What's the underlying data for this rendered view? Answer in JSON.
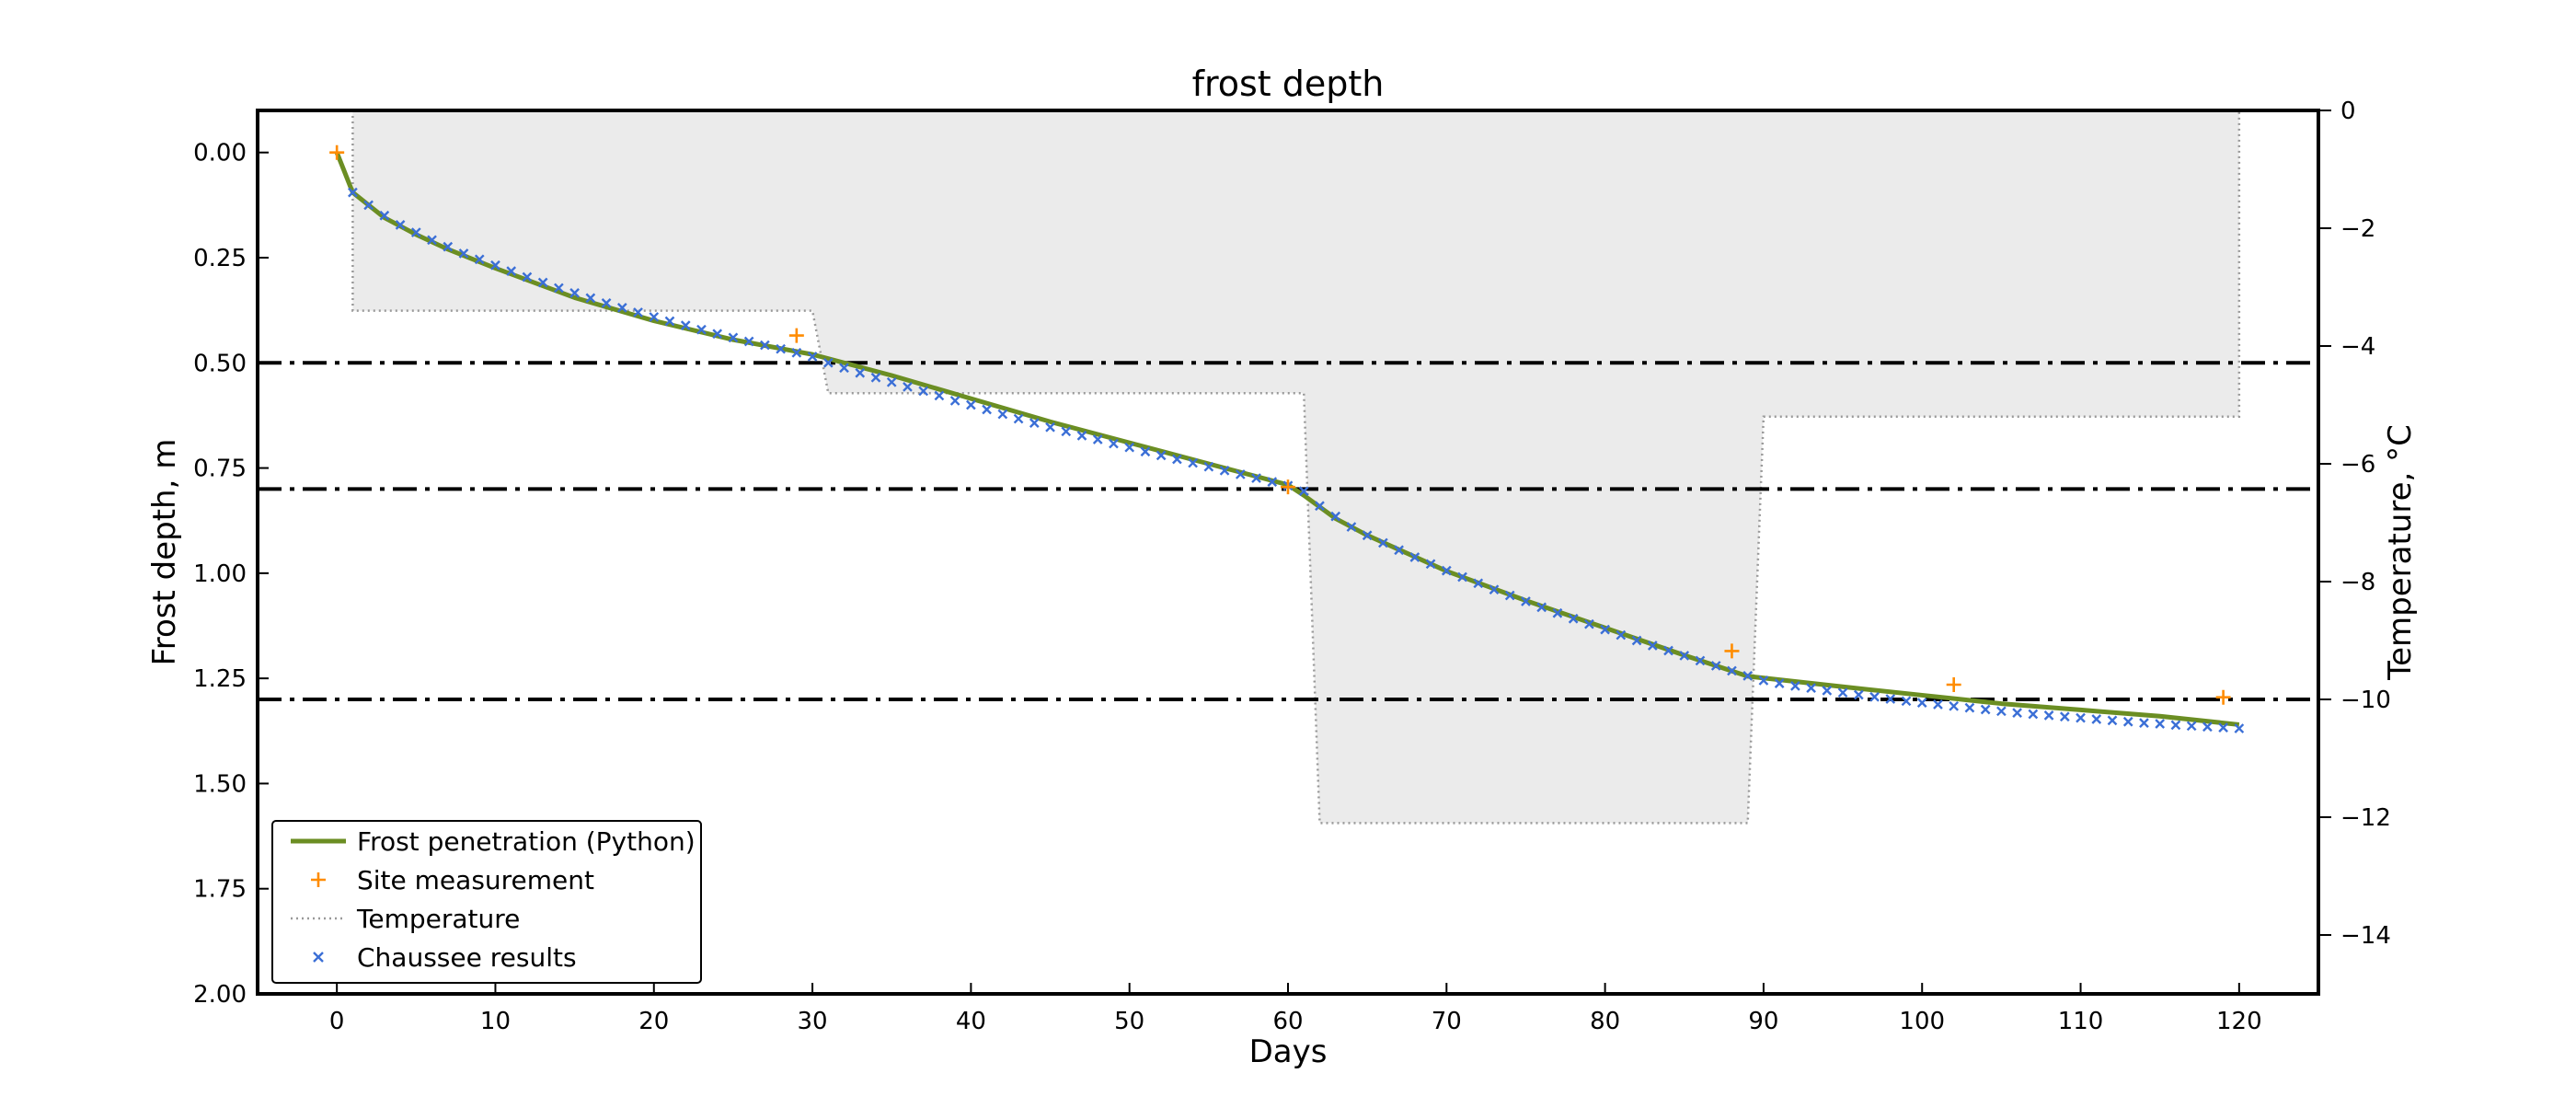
{
  "chart_data": {
    "type": "line",
    "title": "frost depth",
    "xlabel": "Days",
    "ylabel": "Frost depth, m",
    "y2label": "Temperature, °C",
    "xlim": [
      -5,
      125
    ],
    "ylim_inverted": [
      -0.1,
      2.0
    ],
    "y2lim": [
      -15,
      0
    ],
    "x_ticks": [
      0,
      10,
      20,
      30,
      40,
      50,
      60,
      70,
      80,
      90,
      100,
      110,
      120
    ],
    "x_tick_labels": [
      "0",
      "10",
      "20",
      "30",
      "40",
      "50",
      "60",
      "70",
      "80",
      "90",
      "100",
      "110",
      "120"
    ],
    "y_ticks": [
      0.0,
      0.25,
      0.5,
      0.75,
      1.0,
      1.25,
      1.5,
      1.75,
      2.0
    ],
    "y_tick_labels": [
      "0.00",
      "0.25",
      "0.50",
      "0.75",
      "1.00",
      "1.25",
      "1.50",
      "1.75",
      "2.00"
    ],
    "y2_ticks": [
      0,
      -2,
      -4,
      -6,
      -8,
      -10,
      -12,
      -14
    ],
    "y2_tick_labels": [
      "0",
      "−2",
      "−4",
      "−6",
      "−8",
      "−10",
      "−12",
      "−14"
    ],
    "horizontal_lines": [
      0.5,
      0.8,
      1.3
    ],
    "grid": false,
    "legend_position": "lower-left",
    "colors": {
      "frost": "#6b8e23",
      "site": "#ff8c00",
      "temperature": "#999999",
      "temperature_fill": "#ebebeb",
      "chaussee": "#3b6fd6",
      "hline": "#000000"
    },
    "series": [
      {
        "name": "Frost penetration (Python)",
        "kind": "line",
        "x": [
          0,
          1,
          3,
          5,
          7,
          10,
          15,
          20,
          25,
          30,
          35,
          40,
          45,
          50,
          55,
          60,
          61,
          63,
          65,
          70,
          75,
          80,
          85,
          89,
          95,
          100,
          105,
          110,
          115,
          120
        ],
        "y": [
          0.0,
          0.095,
          0.155,
          0.195,
          0.23,
          0.275,
          0.345,
          0.4,
          0.445,
          0.48,
          0.53,
          0.585,
          0.64,
          0.69,
          0.74,
          0.79,
          0.815,
          0.87,
          0.91,
          0.995,
          1.065,
          1.13,
          1.195,
          1.245,
          1.27,
          1.29,
          1.31,
          1.325,
          1.34,
          1.36
        ]
      },
      {
        "name": "Site measurement",
        "kind": "marker-plus",
        "x": [
          0,
          29,
          60,
          88,
          102,
          119
        ],
        "y": [
          0.0,
          0.435,
          0.795,
          1.185,
          1.265,
          1.295
        ]
      },
      {
        "name": "Temperature",
        "kind": "dotted-step",
        "axis": "right",
        "x": [
          1,
          1,
          30,
          31,
          61,
          62,
          89,
          90,
          120,
          120
        ],
        "y": [
          0,
          -3.4,
          -3.4,
          -4.8,
          -4.8,
          -12.1,
          -12.1,
          -5.2,
          -5.2,
          0
        ]
      },
      {
        "name": "Chaussee results",
        "kind": "marker-x",
        "x": [
          1,
          2,
          3,
          4,
          5,
          6,
          7,
          8,
          9,
          10,
          11,
          12,
          13,
          14,
          15,
          16,
          17,
          18,
          19,
          20,
          21,
          22,
          23,
          24,
          25,
          26,
          27,
          28,
          29,
          30,
          31,
          32,
          33,
          34,
          35,
          36,
          37,
          38,
          39,
          40,
          41,
          42,
          43,
          44,
          45,
          46,
          47,
          48,
          49,
          50,
          51,
          52,
          53,
          54,
          55,
          56,
          57,
          58,
          59,
          60,
          61,
          62,
          63,
          64,
          65,
          66,
          67,
          68,
          69,
          70,
          71,
          72,
          73,
          74,
          75,
          76,
          77,
          78,
          79,
          80,
          81,
          82,
          83,
          84,
          85,
          86,
          87,
          88,
          89,
          90,
          91,
          92,
          93,
          94,
          95,
          96,
          97,
          98,
          99,
          100,
          101,
          102,
          103,
          104,
          105,
          106,
          107,
          108,
          109,
          110,
          111,
          112,
          113,
          114,
          115,
          116,
          117,
          118,
          119,
          120
        ],
        "y": [
          0.095,
          0.125,
          0.15,
          0.172,
          0.19,
          0.208,
          0.224,
          0.24,
          0.254,
          0.268,
          0.282,
          0.296,
          0.309,
          0.322,
          0.334,
          0.346,
          0.358,
          0.369,
          0.38,
          0.391,
          0.401,
          0.411,
          0.421,
          0.431,
          0.44,
          0.449,
          0.458,
          0.467,
          0.476,
          0.485,
          0.5,
          0.512,
          0.524,
          0.535,
          0.546,
          0.557,
          0.567,
          0.578,
          0.59,
          0.6,
          0.611,
          0.622,
          0.633,
          0.643,
          0.653,
          0.663,
          0.673,
          0.682,
          0.692,
          0.701,
          0.711,
          0.72,
          0.729,
          0.738,
          0.747,
          0.756,
          0.765,
          0.774,
          0.783,
          0.792,
          0.805,
          0.84,
          0.865,
          0.89,
          0.91,
          0.928,
          0.945,
          0.962,
          0.978,
          0.994,
          1.009,
          1.024,
          1.039,
          1.053,
          1.067,
          1.081,
          1.095,
          1.108,
          1.121,
          1.134,
          1.147,
          1.16,
          1.172,
          1.184,
          1.196,
          1.208,
          1.22,
          1.232,
          1.244,
          1.255,
          1.262,
          1.268,
          1.273,
          1.279,
          1.284,
          1.289,
          1.294,
          1.299,
          1.304,
          1.308,
          1.312,
          1.316,
          1.32,
          1.324,
          1.328,
          1.332,
          1.335,
          1.338,
          1.341,
          1.344,
          1.347,
          1.35,
          1.353,
          1.356,
          1.358,
          1.361,
          1.363,
          1.365,
          1.367,
          1.369
        ]
      }
    ]
  }
}
